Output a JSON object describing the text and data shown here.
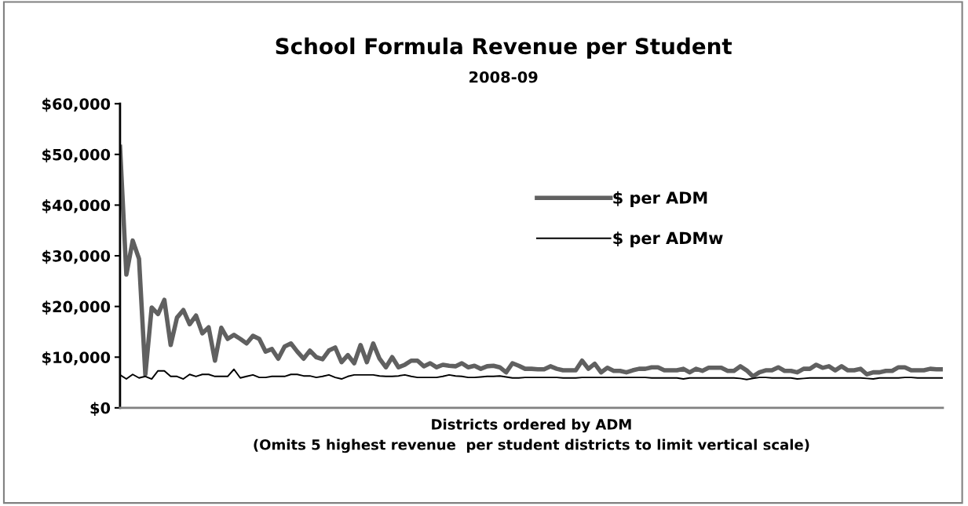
{
  "chart_data": {
    "type": "line",
    "title": "School Formula Revenue per Student",
    "subtitle": "2008-09",
    "xlabel": "Districts ordered by ADM\n(Omits 5 highest revenue  per student districts to limit vertical scale)",
    "categories": [
      null,
      null,
      null,
      null,
      null,
      null,
      null,
      null,
      null,
      null,
      null,
      null,
      null,
      null,
      null,
      null,
      null,
      null,
      null,
      null,
      null,
      null,
      null,
      null,
      null,
      null,
      null,
      null,
      null,
      null,
      null,
      null,
      null,
      null,
      null,
      null,
      null,
      null,
      null,
      null,
      null,
      null,
      null,
      null,
      null,
      null,
      null,
      null,
      null,
      null,
      null,
      null,
      null,
      null,
      null,
      null,
      null,
      null,
      null,
      null,
      null,
      null,
      null,
      null,
      null,
      null,
      null,
      null,
      null,
      null,
      null,
      null,
      null,
      null,
      null,
      null,
      null,
      null,
      null,
      null,
      null,
      null,
      null,
      null,
      null,
      null,
      null,
      null,
      null,
      null,
      null,
      null,
      null,
      null,
      null,
      null,
      null,
      null,
      null,
      null,
      null,
      null,
      null,
      null,
      null,
      null,
      null,
      null,
      null,
      null,
      null,
      null,
      null,
      null,
      null,
      null,
      null,
      null,
      null,
      null,
      null,
      null,
      null,
      null,
      null,
      null,
      null,
      null,
      null,
      null,
      null
    ],
    "ylim": [
      0,
      60000
    ],
    "yticks": [
      {
        "value": 0,
        "label": "$0"
      },
      {
        "value": 10000,
        "label": "$10,000"
      },
      {
        "value": 20000,
        "label": "$20,000"
      },
      {
        "value": 30000,
        "label": "$30,000"
      },
      {
        "value": 40000,
        "label": "$40,000"
      },
      {
        "value": 50000,
        "label": "$50,000"
      },
      {
        "value": 60000,
        "label": "$60,000"
      }
    ],
    "tick_labels": "y",
    "grid": false,
    "legend": "right",
    "marker": "none",
    "line_style": "solid",
    "series": [
      {
        "name": "$ per ADM",
        "color": "#606060",
        "values": [
          51500,
          26300,
          33000,
          29400,
          6600,
          19800,
          18500,
          21300,
          12400,
          17800,
          19300,
          16500,
          18200,
          14700,
          15900,
          9300,
          15800,
          13600,
          14400,
          13600,
          12700,
          14200,
          13600,
          11100,
          11600,
          9700,
          12100,
          12700,
          11100,
          9700,
          11300,
          10000,
          9600,
          11300,
          11900,
          9000,
          10400,
          8800,
          12400,
          9000,
          12700,
          9700,
          8000,
          10000,
          8000,
          8500,
          9300,
          9300,
          8200,
          8800,
          8000,
          8500,
          8300,
          8200,
          8800,
          8000,
          8300,
          7700,
          8200,
          8300,
          8000,
          7000,
          8800,
          8300,
          7700,
          7700,
          7600,
          7600,
          8200,
          7700,
          7400,
          7400,
          7400,
          9300,
          7700,
          8700,
          7000,
          7900,
          7300,
          7300,
          7000,
          7400,
          7700,
          7700,
          8000,
          8000,
          7400,
          7400,
          7400,
          7700,
          7000,
          7700,
          7300,
          7900,
          7900,
          7900,
          7300,
          7300,
          8200,
          7400,
          6200,
          7000,
          7400,
          7400,
          8000,
          7300,
          7300,
          7000,
          7700,
          7700,
          8500,
          7900,
          8200,
          7400,
          8200,
          7400,
          7400,
          7700,
          6600,
          7000,
          7000,
          7300,
          7300,
          8000,
          8000,
          7400,
          7400,
          7400,
          7700,
          7600,
          7600
        ]
      },
      {
        "name": "$ per ADMw",
        "color": "#000000",
        "values": [
          6500,
          5700,
          6600,
          5900,
          6200,
          5700,
          7300,
          7300,
          6200,
          6200,
          5700,
          6600,
          6200,
          6600,
          6600,
          6200,
          6200,
          6200,
          7600,
          5900,
          6200,
          6500,
          6000,
          6000,
          6200,
          6200,
          6200,
          6600,
          6600,
          6300,
          6300,
          6000,
          6200,
          6500,
          6000,
          5700,
          6200,
          6500,
          6500,
          6500,
          6500,
          6300,
          6200,
          6200,
          6300,
          6500,
          6200,
          6000,
          6000,
          6000,
          6000,
          6200,
          6500,
          6300,
          6200,
          6000,
          6000,
          6100,
          6200,
          6200,
          6300,
          6100,
          5900,
          5900,
          6000,
          6000,
          6000,
          6000,
          6000,
          6000,
          5900,
          5900,
          5900,
          6000,
          6000,
          6000,
          6000,
          6000,
          6000,
          6000,
          6000,
          6000,
          6000,
          6000,
          5900,
          5900,
          5900,
          5900,
          5900,
          5700,
          5900,
          5900,
          5900,
          5900,
          5900,
          5900,
          5900,
          5900,
          5800,
          5600,
          5800,
          6000,
          6000,
          5900,
          5900,
          5900,
          5900,
          5700,
          5800,
          5900,
          5900,
          5900,
          5900,
          5900,
          5900,
          5900,
          5900,
          5900,
          5800,
          5700,
          5900,
          5900,
          5900,
          5900,
          6000,
          6000,
          5900,
          5900,
          5900,
          5900,
          5900
        ]
      }
    ]
  }
}
